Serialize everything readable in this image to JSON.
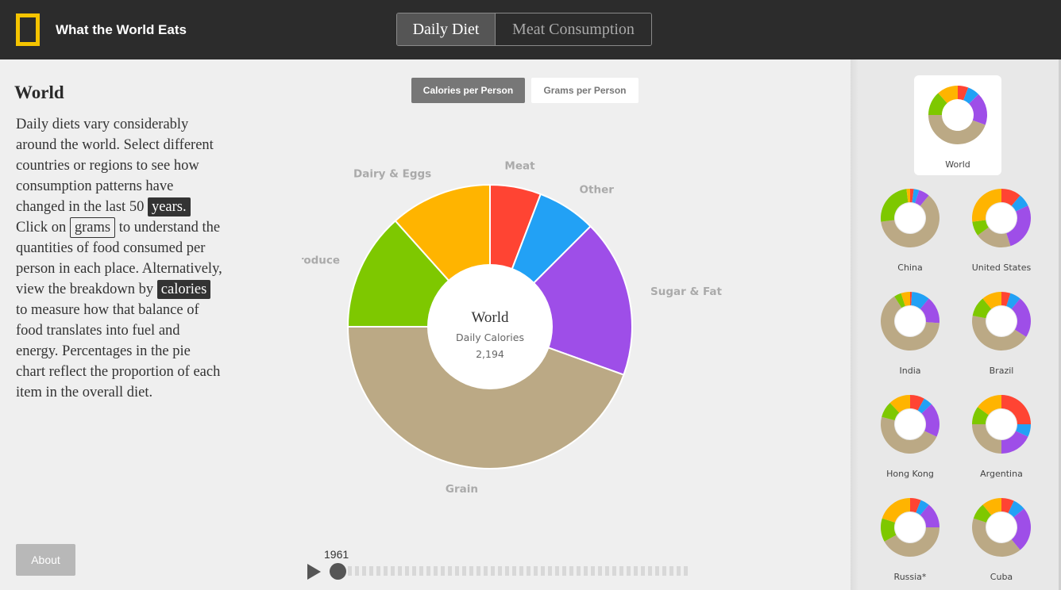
{
  "header": {
    "app_title": "What the World Eats",
    "tabs": [
      {
        "label": "Daily Diet",
        "active": true
      },
      {
        "label": "Meat Consumption",
        "active": false
      }
    ]
  },
  "sidebar_text": {
    "title": "World",
    "p1": "Daily diets vary considerably around the world. Select different countries or regions to see how consumption patterns have changed in the last 50",
    "chip_years": "years.",
    "p2": "Click on",
    "chip_grams": "grams",
    "p3": "to understand the quantities of food consumed per person in each place. Alternatively, view the breakdown by",
    "chip_calories": "calories",
    "p4": "to measure how that balance of food translates into fuel and energy. Percentages in the pie chart reflect the proportion of each item in the overall diet."
  },
  "about_label": "About",
  "unit_toggle": {
    "calories_label": "Calories per Person",
    "grams_label": "Grams per Person",
    "active": "calories"
  },
  "center": {
    "name": "World",
    "metric": "Daily Calories",
    "value": "2,194"
  },
  "timeline": {
    "year": "1961"
  },
  "colors": {
    "Meat": "#ff4433",
    "Other": "#22a1f5",
    "Sugar & Fat": "#9e4ee8",
    "Grain": "#bba985",
    "Produce": "#7ec800",
    "Dairy & Eggs": "#ffb400",
    "header_bg": "#2c2c2c",
    "logo": "#f5c400"
  },
  "chart_data": {
    "type": "pie",
    "title": "World",
    "categories": [
      "Meat",
      "Other",
      "Sugar & Fat",
      "Grain",
      "Produce",
      "Dairy & Eggs"
    ],
    "values": [
      0.058,
      0.067,
      0.18,
      0.445,
      0.134,
      0.116
    ]
  },
  "countries": [
    {
      "name": "World",
      "selected": true,
      "values": [
        0.058,
        0.067,
        0.18,
        0.445,
        0.134,
        0.116
      ]
    },
    {
      "name": "China",
      "values": [
        0.02,
        0.03,
        0.06,
        0.62,
        0.25,
        0.02
      ]
    },
    {
      "name": "United States",
      "values": [
        0.11,
        0.07,
        0.27,
        0.2,
        0.08,
        0.27
      ]
    },
    {
      "name": "India",
      "values": [
        0.01,
        0.1,
        0.15,
        0.65,
        0.04,
        0.05
      ]
    },
    {
      "name": "Brazil",
      "values": [
        0.05,
        0.06,
        0.23,
        0.44,
        0.11,
        0.11
      ]
    },
    {
      "name": "Hong Kong",
      "values": [
        0.08,
        0.05,
        0.19,
        0.47,
        0.09,
        0.12
      ]
    },
    {
      "name": "Argentina",
      "values": [
        0.25,
        0.07,
        0.18,
        0.25,
        0.1,
        0.15
      ]
    },
    {
      "name": "Russia*",
      "values": [
        0.06,
        0.05,
        0.14,
        0.42,
        0.13,
        0.2
      ]
    },
    {
      "name": "Cuba",
      "values": [
        0.07,
        0.07,
        0.25,
        0.41,
        0.09,
        0.11
      ]
    }
  ]
}
